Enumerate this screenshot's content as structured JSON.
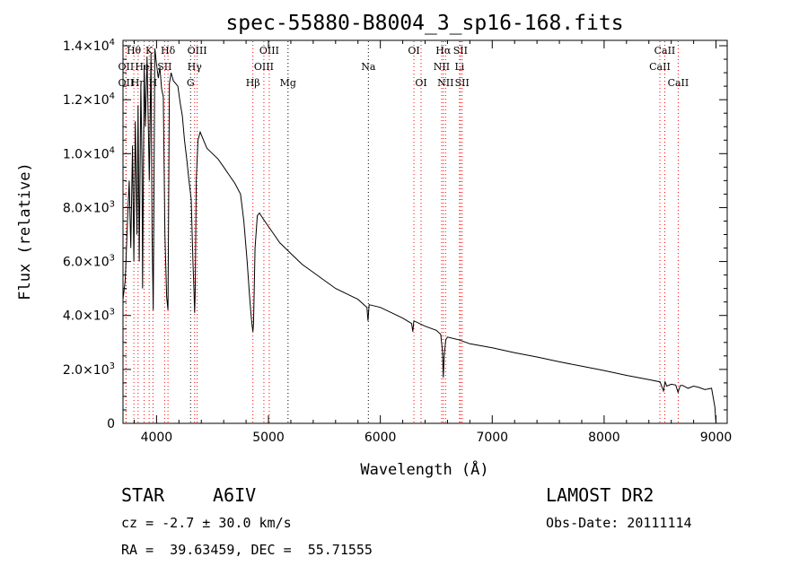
{
  "chart_data": {
    "type": "line",
    "title": "spec-55880-B8004_3_sp16-168.fits",
    "xlabel": "Wavelength (Å)",
    "ylabel": "Flux (relative)",
    "xlim": [
      3700,
      9100
    ],
    "ylim": [
      0,
      14200
    ],
    "x_ticks": [
      {
        "value": 4000,
        "label": "4000"
      },
      {
        "value": 5000,
        "label": "5000"
      },
      {
        "value": 6000,
        "label": "6000"
      },
      {
        "value": 7000,
        "label": "7000"
      },
      {
        "value": 8000,
        "label": "8000"
      },
      {
        "value": 9000,
        "label": "9000"
      }
    ],
    "y_ticks": [
      {
        "value": 0,
        "mant": "0",
        "exp": ""
      },
      {
        "value": 2000,
        "mant": "2.0×10",
        "exp": "3"
      },
      {
        "value": 4000,
        "mant": "4.0×10",
        "exp": "3"
      },
      {
        "value": 6000,
        "mant": "6.0×10",
        "exp": "3"
      },
      {
        "value": 8000,
        "mant": "8.0×10",
        "exp": "3"
      },
      {
        "value": 10000,
        "mant": "1.0×10",
        "exp": "4"
      },
      {
        "value": 12000,
        "mant": "1.2×10",
        "exp": "4"
      },
      {
        "value": 14000,
        "mant": "1.4×10",
        "exp": "4"
      }
    ],
    "series": [
      {
        "name": "spectrum",
        "x": [
          3700,
          3720,
          3740,
          3755,
          3770,
          3785,
          3797,
          3810,
          3825,
          3835,
          3845,
          3860,
          3870,
          3875,
          3889,
          3900,
          3915,
          3935,
          3950,
          3960,
          3970,
          3985,
          4000,
          4015,
          4030,
          4045,
          4060,
          4075,
          4090,
          4102,
          4115,
          4130,
          4150,
          4170,
          4190,
          4210,
          4230,
          4250,
          4270,
          4290,
          4310,
          4325,
          4335,
          4340,
          4345,
          4355,
          4370,
          4390,
          4420,
          4450,
          4500,
          4550,
          4600,
          4650,
          4700,
          4750,
          4780,
          4810,
          4830,
          4845,
          4855,
          4861,
          4867,
          4880,
          4900,
          4920,
          4950,
          5000,
          5050,
          5100,
          5150,
          5200,
          5250,
          5300,
          5400,
          5500,
          5600,
          5700,
          5800,
          5880,
          5890,
          5900,
          6000,
          6100,
          6200,
          6280,
          6290,
          6300,
          6400,
          6500,
          6540,
          6555,
          6563,
          6570,
          6585,
          6600,
          6700,
          6800,
          7000,
          7200,
          7400,
          7600,
          7800,
          8000,
          8200,
          8400,
          8500,
          8530,
          8545,
          8560,
          8600,
          8640,
          8660,
          8680,
          8700,
          8750,
          8800,
          8850,
          8900,
          8960,
          8990,
          9000
        ],
        "y": [
          4600,
          5300,
          7500,
          9000,
          6500,
          10300,
          6000,
          11200,
          7000,
          11800,
          6000,
          12600,
          9500,
          5000,
          13300,
          11000,
          13600,
          9000,
          13700,
          7000,
          4200,
          13900,
          13300,
          12800,
          13200,
          12400,
          12100,
          7000,
          4700,
          4200,
          12600,
          13000,
          12700,
          12600,
          12500,
          11900,
          11400,
          10500,
          9800,
          9000,
          8300,
          6000,
          4900,
          4100,
          4800,
          9000,
          10500,
          10800,
          10500,
          10200,
          10000,
          9800,
          9500,
          9200,
          8900,
          8500,
          7500,
          6000,
          4800,
          4000,
          3600,
          3400,
          3700,
          6500,
          7700,
          7800,
          7600,
          7300,
          7000,
          6700,
          6500,
          6300,
          6100,
          5900,
          5600,
          5300,
          5000,
          4800,
          4600,
          4300,
          3800,
          4400,
          4300,
          4100,
          3900,
          3700,
          3400,
          3800,
          3600,
          3450,
          3300,
          2700,
          1700,
          2500,
          3100,
          3200,
          3100,
          2950,
          2800,
          2620,
          2460,
          2280,
          2120,
          1960,
          1780,
          1620,
          1540,
          1200,
          1540,
          1380,
          1450,
          1420,
          1150,
          1400,
          1410,
          1300,
          1380,
          1330,
          1250,
          1300,
          600,
          0
        ]
      }
    ],
    "line_labels": [
      {
        "text": "Hθ",
        "wave": 3797,
        "row": 1,
        "color": "#ff0000"
      },
      {
        "text": "K",
        "wave": 3934,
        "row": 1,
        "color": "#ff0000"
      },
      {
        "text": "Hδ",
        "wave": 4102,
        "row": 1,
        "color": "#ff0000"
      },
      {
        "text": "OIII",
        "wave": 4363,
        "row": 1,
        "color": "#ff0000"
      },
      {
        "text": "OIII",
        "wave": 5007,
        "row": 1,
        "color": "#ff0000"
      },
      {
        "text": "OI",
        "wave": 6300,
        "row": 1,
        "color": "#ff0000"
      },
      {
        "text": "Hα",
        "wave": 6563,
        "row": 1,
        "color": "#ff0000"
      },
      {
        "text": "SII",
        "wave": 6716,
        "row": 1,
        "color": "#ff0000"
      },
      {
        "text": "CaII",
        "wave": 8542,
        "row": 1,
        "color": "#ff0000"
      },
      {
        "text": "OII",
        "wave": 3727,
        "row": 2,
        "color": "#ff0000"
      },
      {
        "text": "HeI",
        "wave": 3889,
        "row": 2,
        "color": "#ff0000"
      },
      {
        "text": "SII",
        "wave": 4072,
        "row": 2,
        "color": "#ff0000"
      },
      {
        "text": "Hγ",
        "wave": 4340,
        "row": 2,
        "color": "#ff0000"
      },
      {
        "text": "OIII",
        "wave": 4959,
        "row": 2,
        "color": "#ff0000"
      },
      {
        "text": "Na",
        "wave": 5893,
        "row": 2,
        "color": "#000000"
      },
      {
        "text": "NII",
        "wave": 6548,
        "row": 2,
        "color": "#ff0000"
      },
      {
        "text": "Li",
        "wave": 6708,
        "row": 2,
        "color": "#ff0000"
      },
      {
        "text": "CaII",
        "wave": 8498,
        "row": 2,
        "color": "#ff0000"
      },
      {
        "text": "OII",
        "wave": 3727,
        "row": 3,
        "color": "#ff0000"
      },
      {
        "text": "Hη",
        "wave": 3835,
        "row": 3,
        "color": "#ff0000"
      },
      {
        "text": "H",
        "wave": 3968,
        "row": 3,
        "color": "#ff0000"
      },
      {
        "text": "G",
        "wave": 4304,
        "row": 3,
        "color": "#000000"
      },
      {
        "text": "Hβ",
        "wave": 4861,
        "row": 3,
        "color": "#ff0000"
      },
      {
        "text": "Mg",
        "wave": 5175,
        "row": 3,
        "color": "#000000"
      },
      {
        "text": "OI",
        "wave": 6364,
        "row": 3,
        "color": "#ff0000"
      },
      {
        "text": "NII",
        "wave": 6583,
        "row": 3,
        "color": "#ff0000"
      },
      {
        "text": "SII",
        "wave": 6731,
        "row": 3,
        "color": "#ff0000"
      },
      {
        "text": "CaII",
        "wave": 8662,
        "row": 3,
        "color": "#ff0000"
      }
    ],
    "colors": {
      "line": "#000000",
      "emission_marker": "#ff0000",
      "absorption_marker": "#000000"
    }
  },
  "info": {
    "class_label": "STAR",
    "subclass": "A6IV",
    "survey": "LAMOST DR2",
    "redshift": "cz = -2.7 ± 30.0 km/s",
    "obs_date": "Obs-Date: 20111114",
    "coords": "RA =  39.63459, DEC =  55.71555"
  }
}
